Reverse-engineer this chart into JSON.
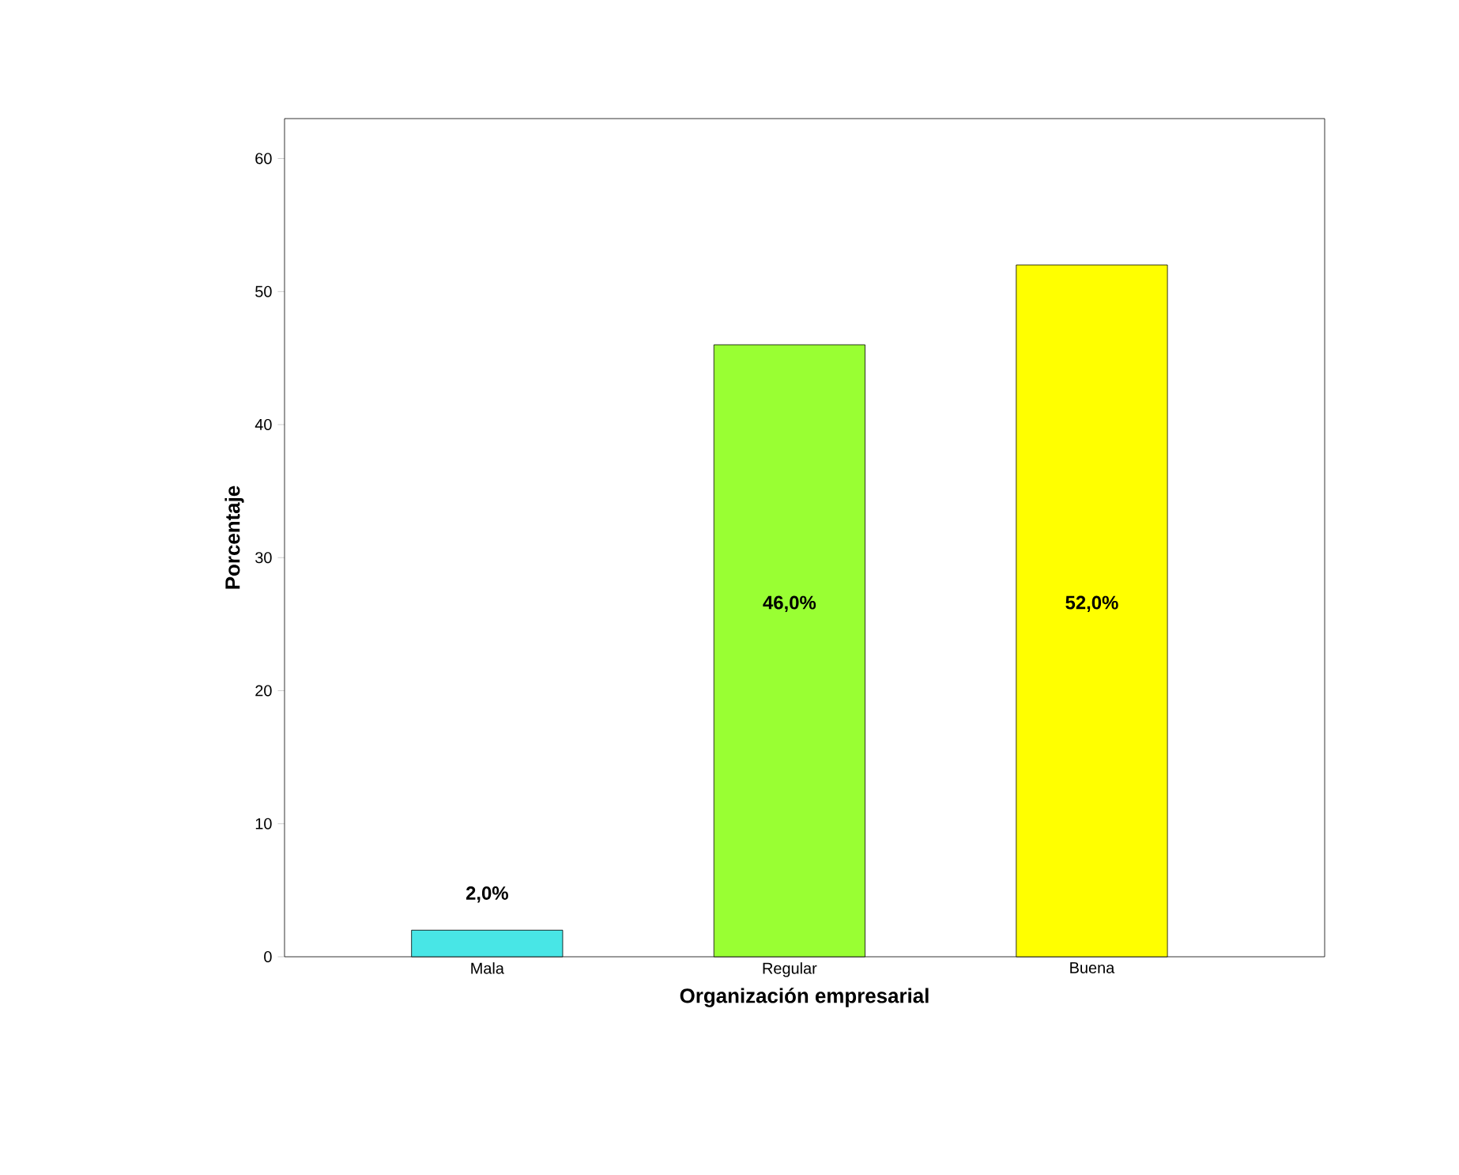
{
  "chart_data": {
    "type": "bar",
    "xlabel": "Organización empresarial",
    "ylabel": "Porcentaje",
    "categories": [
      "Mala",
      "Regular",
      "Buena"
    ],
    "values": [
      2,
      46,
      52
    ],
    "colors": [
      "#48e6e6",
      "#99ff33",
      "#ffff00"
    ],
    "value_labels": [
      "2,0%",
      "46,0%",
      "52,0%"
    ],
    "ylim": [
      0,
      63
    ],
    "yticks": [
      0,
      10,
      20,
      30,
      40,
      50,
      60
    ],
    "grid": false
  }
}
